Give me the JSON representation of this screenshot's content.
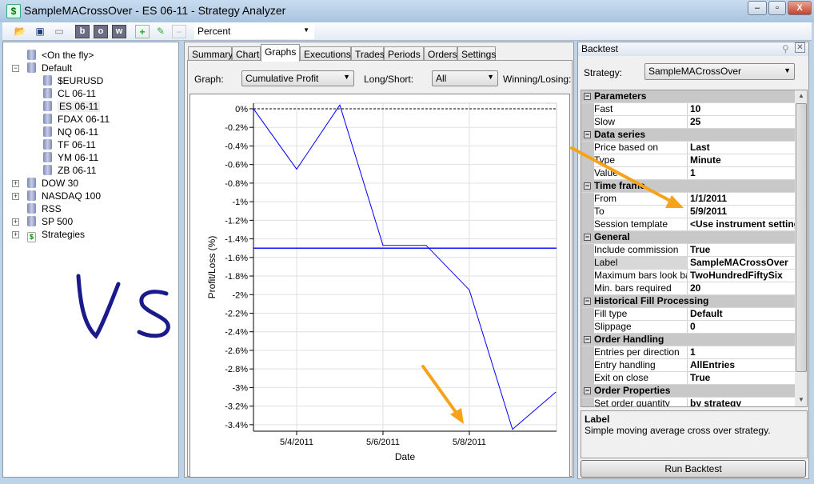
{
  "window": {
    "title": "SampleMACrossOver - ES 06-11 - Strategy Analyzer",
    "minimize": "–",
    "maximize": "▫",
    "close": "X"
  },
  "toolbar": {
    "display_unit": "Percent",
    "buttons": [
      "open-icon",
      "save-icon",
      "presentation-icon",
      "b",
      "o",
      "w",
      "add-icon",
      "edit-icon",
      "remove-icon"
    ]
  },
  "tree": {
    "items": [
      {
        "label": "<On the fly>",
        "level": 1,
        "expander": ""
      },
      {
        "label": "Default",
        "level": 0,
        "expander": "−"
      },
      {
        "label": "$EURUSD",
        "level": 2,
        "expander": ""
      },
      {
        "label": "CL 06-11",
        "level": 2,
        "expander": ""
      },
      {
        "label": "ES 06-11",
        "level": 2,
        "expander": "",
        "selected": true
      },
      {
        "label": "FDAX 06-11",
        "level": 2,
        "expander": ""
      },
      {
        "label": "NQ 06-11",
        "level": 2,
        "expander": ""
      },
      {
        "label": "TF 06-11",
        "level": 2,
        "expander": ""
      },
      {
        "label": "YM 06-11",
        "level": 2,
        "expander": ""
      },
      {
        "label": "ZB 06-11",
        "level": 2,
        "expander": ""
      },
      {
        "label": "DOW 30",
        "level": 0,
        "expander": "+"
      },
      {
        "label": "NASDAQ 100",
        "level": 0,
        "expander": "+"
      },
      {
        "label": "RSS",
        "level": 0,
        "expander": ""
      },
      {
        "label": "SP 500",
        "level": 0,
        "expander": "+"
      },
      {
        "label": "Strategies",
        "level": 0,
        "expander": "+"
      }
    ]
  },
  "annotation": {
    "handwriting": "VS",
    "color": "#1a1a8c",
    "arrow_color": "#f7a21b"
  },
  "tabs": [
    "Summary",
    "Chart",
    "Graphs",
    "Executions",
    "Trades",
    "Periods",
    "Orders",
    "Settings"
  ],
  "active_tab": "Graphs",
  "filters": {
    "graph_label": "Graph:",
    "graph_value": "Cumulative Profit",
    "longshort_label": "Long/Short:",
    "longshort_value": "All",
    "winlose_label": "Winning/Losing:"
  },
  "chart_data": {
    "type": "line",
    "xlabel": "Date",
    "ylabel": "Profit/Loss (%)",
    "x": [
      "5/3/2011",
      "5/4/2011",
      "5/5/2011",
      "5/6/2011",
      "5/7/2011",
      "5/8/2011",
      "5/9/2011",
      "5/10/2011"
    ],
    "values": [
      0,
      -0.65,
      0.04,
      -1.47,
      -1.47,
      -1.95,
      -3.45,
      -3.05
    ],
    "x_tick_labels": [
      "5/4/2011",
      "5/6/2011",
      "5/8/2011"
    ],
    "y_tick_labels": [
      "0%",
      "-0.2%",
      "-0.4%",
      "-0.6%",
      "-0.8%",
      "-1%",
      "-1.2%",
      "-1.4%",
      "-1.6%",
      "-1.8%",
      "-2%",
      "-2.2%",
      "-2.4%",
      "-2.6%",
      "-2.8%",
      "-3%",
      "-3.2%",
      "-3.4%"
    ],
    "y_ticks": [
      0,
      -0.2,
      -0.4,
      -0.6,
      -0.8,
      -1,
      -1.2,
      -1.4,
      -1.6,
      -1.8,
      -2,
      -2.2,
      -2.4,
      -2.6,
      -2.8,
      -3,
      -3.2,
      -3.4
    ],
    "ylim": [
      -3.47,
      0.06
    ],
    "reference_line": -1.5,
    "zero_line": 0,
    "grid": true,
    "line_color": "#0000ff"
  },
  "backtest": {
    "title": "Backtest",
    "strategy_label": "Strategy:",
    "strategy_value": "SampleMACrossOver",
    "rows": [
      {
        "cat": "Parameters"
      },
      {
        "name": "Fast",
        "value": "10"
      },
      {
        "name": "Slow",
        "value": "25"
      },
      {
        "cat": "Data series"
      },
      {
        "name": "Price based on",
        "value": "Last"
      },
      {
        "name": "Type",
        "value": "Minute"
      },
      {
        "name": "Value",
        "value": "1"
      },
      {
        "cat": "Time frame"
      },
      {
        "name": "From",
        "value": "1/1/2011"
      },
      {
        "name": "To",
        "value": "5/9/2011"
      },
      {
        "name": "Session template",
        "value": "<Use instrument settings>"
      },
      {
        "cat": "General"
      },
      {
        "name": "Include commission",
        "value": "True"
      },
      {
        "name": "Label",
        "value": "SampleMACrossOver",
        "selected": true
      },
      {
        "name": "Maximum bars look back",
        "value": "TwoHundredFiftySix"
      },
      {
        "name": "Min. bars required",
        "value": "20"
      },
      {
        "cat": "Historical Fill Processing"
      },
      {
        "name": "Fill type",
        "value": "Default"
      },
      {
        "name": "Slippage",
        "value": "0"
      },
      {
        "cat": "Order Handling"
      },
      {
        "name": "Entries per direction",
        "value": "1"
      },
      {
        "name": "Entry handling",
        "value": "AllEntries"
      },
      {
        "name": "Exit on close",
        "value": "True"
      },
      {
        "cat": "Order Properties"
      },
      {
        "name": "Set order quantity",
        "value": "by strategy"
      }
    ],
    "desc_title": "Label",
    "desc_text": "Simple moving average cross over strategy.",
    "run_button": "Run Backtest"
  }
}
